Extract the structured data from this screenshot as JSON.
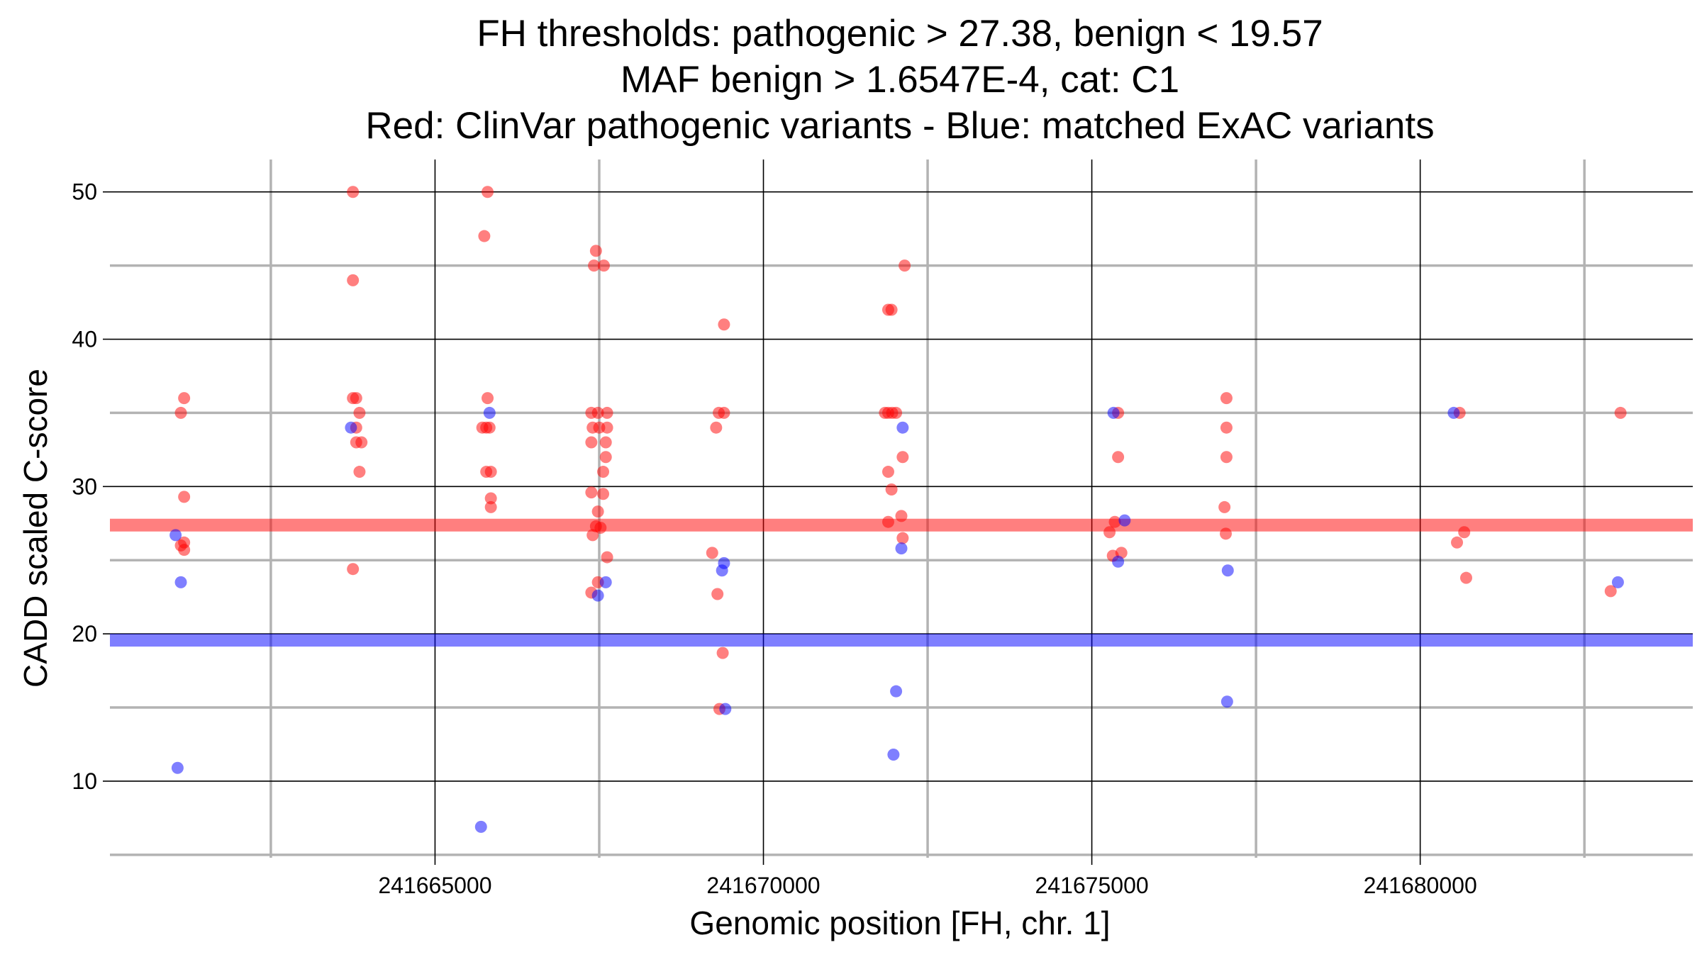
{
  "chart_data": {
    "type": "scatter",
    "title_lines": [
      "FH thresholds: pathogenic > 27.38, benign < 19.57",
      "MAF benign > 1.6547E-4, cat: C1",
      "Red: ClinVar pathogenic variants - Blue: matched ExAC variants"
    ],
    "xlabel": "Genomic position [FH, chr. 1]",
    "ylabel": "CADD scaled C-score",
    "xlim": [
      241660050,
      241684150
    ],
    "ylim": [
      4.8,
      52.2
    ],
    "x_major_ticks": [
      241665000,
      241670000,
      241675000,
      241680000
    ],
    "x_minor_ticks": [
      241662500,
      241667500,
      241672500,
      241677500,
      241682500
    ],
    "x_tick_labels": [
      "241665000",
      "241670000",
      "241675000",
      "241680000"
    ],
    "y_major_ticks": [
      10,
      20,
      30,
      40,
      50
    ],
    "y_minor_ticks": [
      5,
      15,
      25,
      35,
      45
    ],
    "y_tick_labels": [
      "10",
      "20",
      "30",
      "40",
      "50"
    ],
    "grid": true,
    "colors": {
      "pathogenic": "#ff0000",
      "benign": "#0000ff",
      "major_grid": "#000000",
      "minor_grid": "#b3b3b3"
    },
    "thresholds": [
      {
        "name": "pathogenic",
        "value": 27.38,
        "color": "#ff0000"
      },
      {
        "name": "benign",
        "value": 19.57,
        "color": "#0000ff"
      }
    ],
    "series": [
      {
        "color": "#ff0000",
        "points": [
          [
            241661180,
            36
          ],
          [
            241661130,
            35
          ],
          [
            241661180,
            29.3
          ],
          [
            241661180,
            26.2
          ],
          [
            241661130,
            26
          ],
          [
            241661180,
            25.7
          ],
          [
            241663750,
            50
          ],
          [
            241663750,
            44
          ],
          [
            241663750,
            36
          ],
          [
            241663800,
            36
          ],
          [
            241663800,
            34
          ],
          [
            241663850,
            35
          ],
          [
            241663800,
            33
          ],
          [
            241663880,
            33
          ],
          [
            241663850,
            31
          ],
          [
            241663750,
            24.4
          ],
          [
            241665800,
            50
          ],
          [
            241665750,
            47
          ],
          [
            241665800,
            36
          ],
          [
            241665720,
            34
          ],
          [
            241665780,
            34
          ],
          [
            241665830,
            34
          ],
          [
            241665780,
            31
          ],
          [
            241665850,
            31
          ],
          [
            241665850,
            29.2
          ],
          [
            241665850,
            28.6
          ],
          [
            241667450,
            46
          ],
          [
            241667420,
            45
          ],
          [
            241667570,
            45
          ],
          [
            241667380,
            35
          ],
          [
            241667480,
            35
          ],
          [
            241667620,
            35
          ],
          [
            241667400,
            34
          ],
          [
            241667500,
            34
          ],
          [
            241667620,
            34
          ],
          [
            241667380,
            33
          ],
          [
            241667600,
            33
          ],
          [
            241667600,
            32
          ],
          [
            241667560,
            31
          ],
          [
            241667380,
            29.6
          ],
          [
            241667560,
            29.5
          ],
          [
            241667480,
            28.3
          ],
          [
            241667450,
            27.3
          ],
          [
            241667520,
            27.2
          ],
          [
            241667400,
            26.7
          ],
          [
            241667620,
            25.2
          ],
          [
            241667480,
            23.5
          ],
          [
            241667380,
            22.8
          ],
          [
            241669400,
            41
          ],
          [
            241669320,
            35
          ],
          [
            241669400,
            35
          ],
          [
            241669280,
            34
          ],
          [
            241669220,
            25.5
          ],
          [
            241669300,
            22.7
          ],
          [
            241669380,
            18.7
          ],
          [
            241669330,
            14.9
          ],
          [
            241672150,
            45
          ],
          [
            241671900,
            42
          ],
          [
            241671950,
            42
          ],
          [
            241671850,
            35
          ],
          [
            241671900,
            35
          ],
          [
            241671960,
            35
          ],
          [
            241672020,
            35
          ],
          [
            241672120,
            32
          ],
          [
            241671900,
            31
          ],
          [
            241671950,
            29.8
          ],
          [
            241672100,
            28
          ],
          [
            241671900,
            27.6
          ],
          [
            241672120,
            26.5
          ],
          [
            241675400,
            35
          ],
          [
            241675400,
            32
          ],
          [
            241675350,
            27.6
          ],
          [
            241675270,
            26.9
          ],
          [
            241675320,
            25.3
          ],
          [
            241675450,
            25.5
          ],
          [
            241677050,
            36
          ],
          [
            241677050,
            34
          ],
          [
            241677050,
            32
          ],
          [
            241677020,
            28.6
          ],
          [
            241677040,
            26.8
          ],
          [
            241680600,
            35
          ],
          [
            241680670,
            26.9
          ],
          [
            241680560,
            26.2
          ],
          [
            241680700,
            23.8
          ],
          [
            241683050,
            35
          ],
          [
            241682900,
            22.9
          ]
        ]
      },
      {
        "color": "#0000ff",
        "points": [
          [
            241661050,
            26.7
          ],
          [
            241661130,
            23.5
          ],
          [
            241661080,
            10.9
          ],
          [
            241663720,
            34
          ],
          [
            241665830,
            35
          ],
          [
            241665700,
            6.9
          ],
          [
            241667480,
            22.6
          ],
          [
            241667600,
            23.5
          ],
          [
            241669400,
            24.8
          ],
          [
            241669370,
            24.3
          ],
          [
            241669420,
            14.9
          ],
          [
            241672120,
            34
          ],
          [
            241672020,
            16.1
          ],
          [
            241672100,
            25.8
          ],
          [
            241671980,
            11.8
          ],
          [
            241675330,
            35
          ],
          [
            241675400,
            24.9
          ],
          [
            241675500,
            27.7
          ],
          [
            241677070,
            24.3
          ],
          [
            241677060,
            15.4
          ],
          [
            241680510,
            35
          ],
          [
            241683010,
            23.5
          ]
        ]
      }
    ]
  }
}
